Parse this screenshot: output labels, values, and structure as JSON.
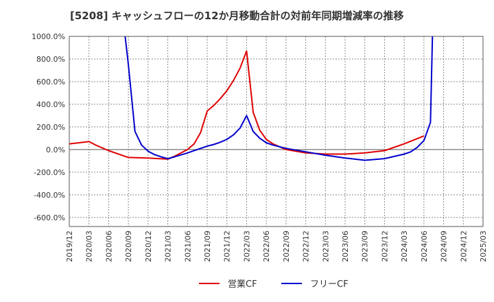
{
  "chart_data": {
    "type": "line",
    "title": "[5208]  キャッシュフローの12か月移動合計の対前年同期増減率の推移",
    "xlabel": "",
    "ylabel": "",
    "ylim": [
      -680,
      1000
    ],
    "yticks": [
      1000,
      800,
      600,
      400,
      200,
      0,
      -200,
      -400,
      -600
    ],
    "ytick_labels": [
      "1000.0%",
      "800.0%",
      "600.0%",
      "400.0%",
      "200.0%",
      "0.0%",
      "-200.0%",
      "-400.0%",
      "-600.0%"
    ],
    "xticks": [
      "2019/12",
      "2020/03",
      "2020/06",
      "2020/09",
      "2020/12",
      "2021/03",
      "2021/06",
      "2021/09",
      "2021/12",
      "2022/03",
      "2022/06",
      "2022/09",
      "2022/12",
      "2023/03",
      "2023/06",
      "2023/09",
      "2023/12",
      "2024/03",
      "2024/06",
      "2024/09",
      "2024/12",
      "2025/03"
    ],
    "grid": true,
    "legend_position": "bottom",
    "series": [
      {
        "name": "営業CF",
        "color": "#e00000",
        "points": [
          [
            0,
            50
          ],
          [
            3,
            70
          ],
          [
            4,
            40
          ],
          [
            6,
            -10
          ],
          [
            9,
            -70
          ],
          [
            12,
            -75
          ],
          [
            15,
            -85
          ],
          [
            16,
            -60
          ],
          [
            18,
            0
          ],
          [
            19,
            50
          ],
          [
            20,
            150
          ],
          [
            21,
            340
          ],
          [
            22,
            390
          ],
          [
            23,
            450
          ],
          [
            24,
            520
          ],
          [
            25,
            610
          ],
          [
            26,
            720
          ],
          [
            27,
            870
          ],
          [
            28,
            330
          ],
          [
            29,
            170
          ],
          [
            30,
            90
          ],
          [
            31,
            50
          ],
          [
            33,
            0
          ],
          [
            36,
            -30
          ],
          [
            39,
            -40
          ],
          [
            42,
            -40
          ],
          [
            45,
            -30
          ],
          [
            48,
            -10
          ],
          [
            51,
            50
          ],
          [
            54,
            120
          ]
        ]
      },
      {
        "name": "フリーCF",
        "color": "#0000cc",
        "points": [
          [
            8.5,
            1000
          ],
          [
            9,
            750
          ],
          [
            10,
            160
          ],
          [
            11,
            40
          ],
          [
            12,
            -15
          ],
          [
            13,
            -45
          ],
          [
            14,
            -65
          ],
          [
            15,
            -80
          ],
          [
            16,
            -65
          ],
          [
            18,
            -30
          ],
          [
            20,
            10
          ],
          [
            21,
            30
          ],
          [
            22,
            45
          ],
          [
            23,
            65
          ],
          [
            24,
            90
          ],
          [
            25,
            130
          ],
          [
            26,
            190
          ],
          [
            27,
            300
          ],
          [
            28,
            160
          ],
          [
            29,
            100
          ],
          [
            30,
            60
          ],
          [
            31,
            40
          ],
          [
            33,
            10
          ],
          [
            36,
            -20
          ],
          [
            39,
            -50
          ],
          [
            42,
            -75
          ],
          [
            45,
            -95
          ],
          [
            48,
            -80
          ],
          [
            51,
            -40
          ],
          [
            52,
            -20
          ],
          [
            53,
            20
          ],
          [
            54,
            80
          ],
          [
            55,
            240
          ],
          [
            55.3,
            1000
          ]
        ]
      }
    ]
  }
}
